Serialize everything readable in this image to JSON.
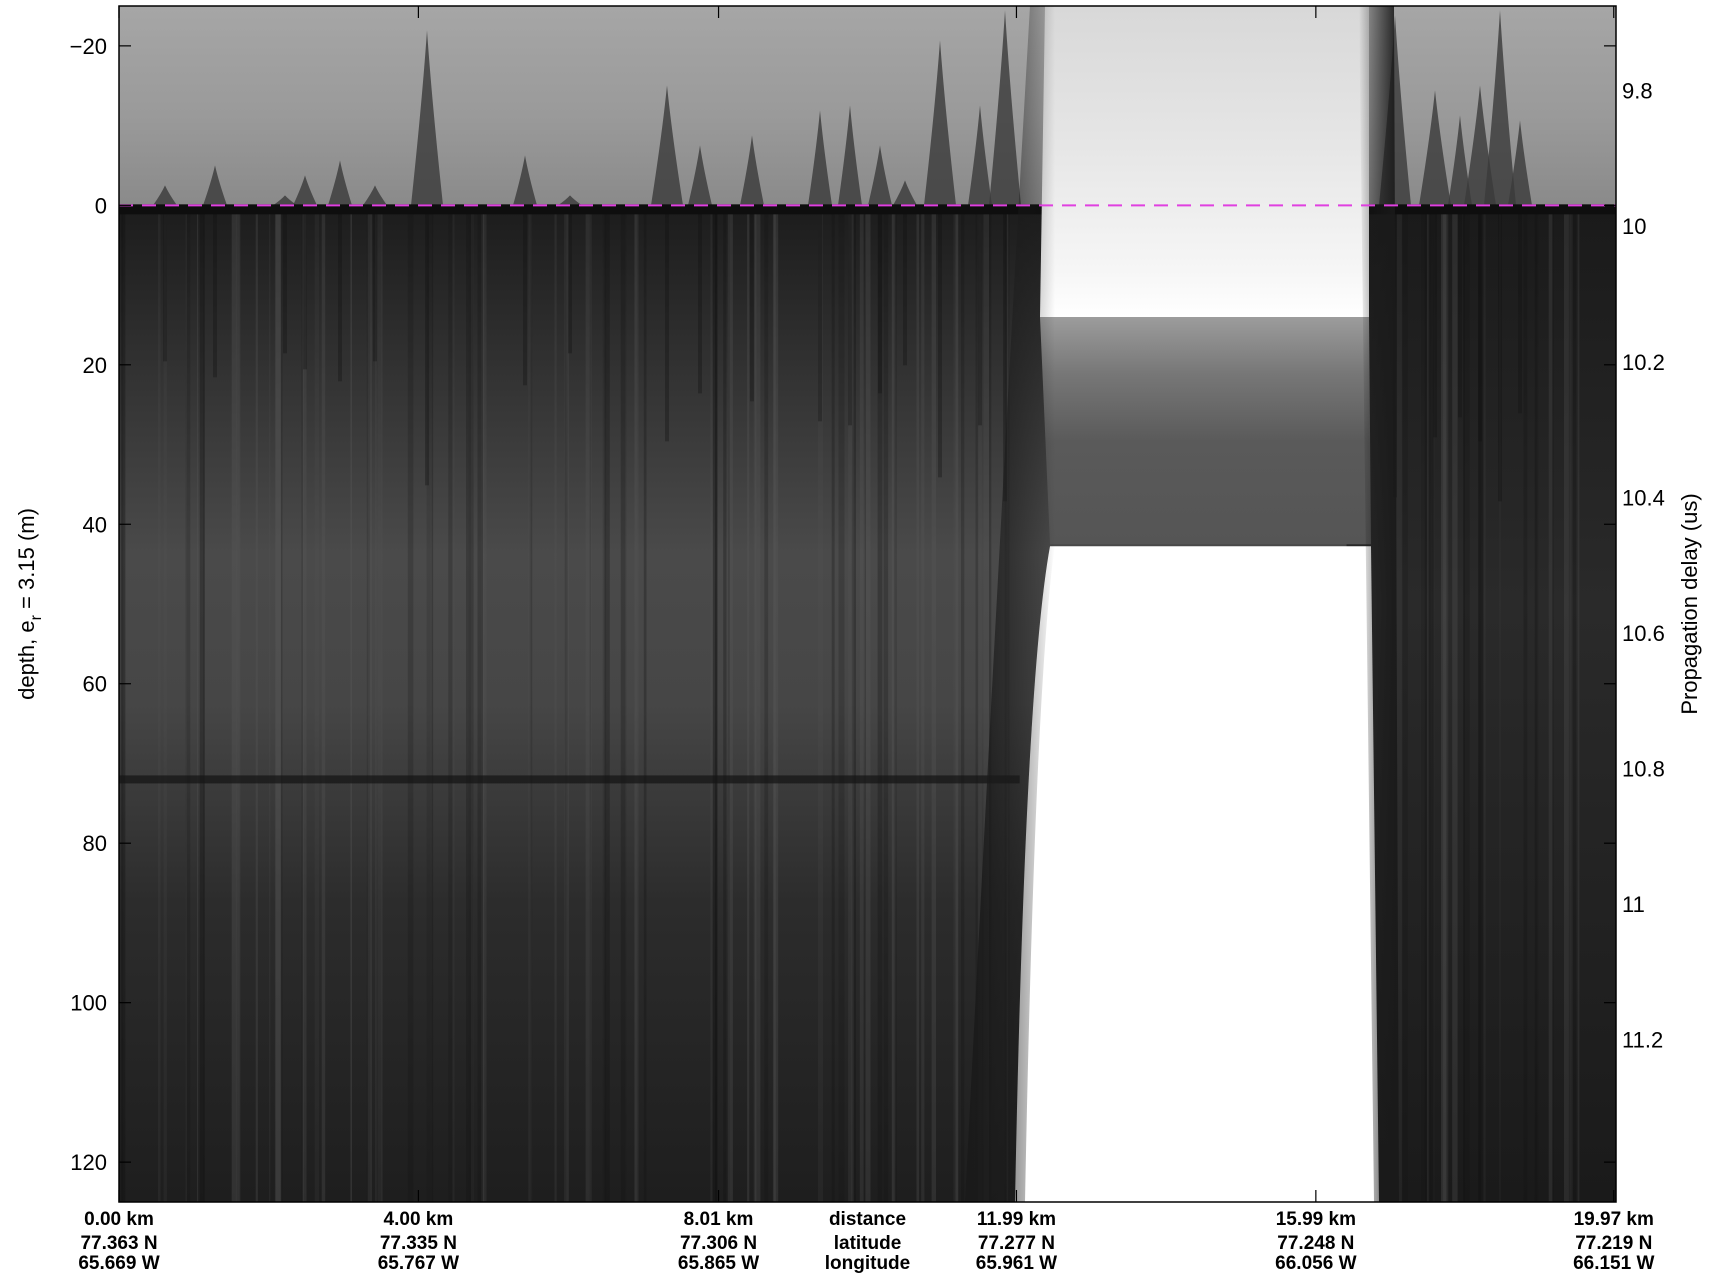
{
  "chart_data": {
    "type": "heatmap",
    "colormap": "grayscale",
    "ylabel_left": "depth, e",
    "ylabel_left_subscript": "r",
    "ylabel_left_suffix": " = 3.15 (m)",
    "ylabel_right": "Propagation delay (us)",
    "y_left_ticks": [
      -20,
      0,
      20,
      40,
      60,
      80,
      100,
      120
    ],
    "y_left_tick_labels": [
      "−20",
      "0",
      "20",
      "40",
      "60",
      "80",
      "100",
      "120"
    ],
    "y_left_range": [
      -25,
      125
    ],
    "y_right_ticks": [
      9.8,
      10,
      10.2,
      10.4,
      10.6,
      10.8,
      11,
      11.2
    ],
    "y_right_tick_labels": [
      "9.8",
      "10",
      "10.2",
      "10.4",
      "10.6",
      "10.8",
      "11",
      "11.2"
    ],
    "y_right_range": [
      9.675,
      11.44
    ],
    "x_range_km": [
      0,
      20
    ],
    "x_ticks": [
      {
        "distance": 0.0,
        "label_distance": "0.00 km",
        "label_lat": "77.363 N",
        "label_lon": "65.669 W"
      },
      {
        "distance": 4.0,
        "label_distance": "4.00 km",
        "label_lat": "77.335 N",
        "label_lon": "65.767 W"
      },
      {
        "distance": 8.01,
        "label_distance": "8.01 km",
        "label_lat": "77.306 N",
        "label_lon": "65.865 W"
      },
      {
        "distance": 11.99,
        "label_distance": "11.99 km",
        "label_lat": "77.277 N",
        "label_lon": "65.961 W"
      },
      {
        "distance": 15.99,
        "label_distance": "15.99 km",
        "label_lat": "77.248 N",
        "label_lon": "66.056 W"
      },
      {
        "distance": 19.97,
        "label_distance": "19.97 km",
        "label_lat": "77.219 N",
        "label_lon": "66.151 W"
      }
    ],
    "x_row_titles": [
      "distance",
      "latitude",
      "longitude"
    ],
    "surface_line": {
      "depth": 0,
      "color": "#e040e0",
      "style": "dashed"
    },
    "layer_band_depth": 72,
    "gap_region_km": [
      12.3,
      16.4
    ]
  }
}
